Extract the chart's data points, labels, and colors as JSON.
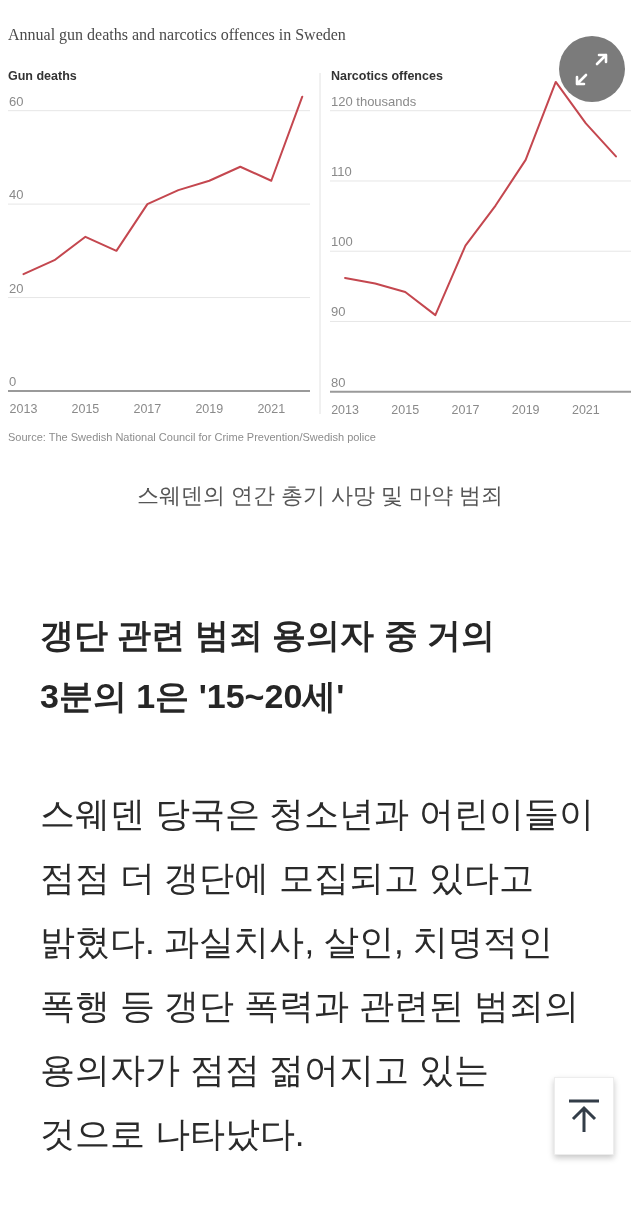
{
  "chart_data": [
    {
      "type": "line",
      "title": "Annual gun deaths and narcotics offences in Sweden",
      "ylabel": "Gun deaths",
      "x": [
        2013,
        2014,
        2015,
        2016,
        2017,
        2018,
        2019,
        2020,
        2021,
        2022
      ],
      "series": [
        {
          "color": "#c4474f",
          "values": [
            25,
            28,
            33,
            30,
            40,
            43,
            45,
            48,
            45,
            63
          ]
        }
      ],
      "xlim": [
        2012.5,
        2022.25
      ],
      "xticks": [
        2013,
        2015,
        2017,
        2019,
        2021
      ],
      "ylim": [
        0,
        68
      ],
      "yticks": [
        0,
        20,
        40,
        60
      ],
      "grid": "y",
      "annotations": [
        "Source: The Swedish National Council for Crime Prevention/Swedish police",
        "스웨덴의 연간 총기 사망 및 마약 범죄"
      ]
    },
    {
      "type": "line",
      "ylabel": "Narcotics offences",
      "x": [
        2013,
        2014,
        2015,
        2016,
        2017,
        2018,
        2019,
        2020,
        2021,
        2022
      ],
      "series": [
        {
          "color": "#c4474f",
          "values": [
            96.2,
            95.4,
            94.2,
            90.9,
            100.8,
            106.5,
            113.0,
            124.1,
            118.2,
            113.5
          ]
        }
      ],
      "xlim": [
        2012.5,
        2022.5
      ],
      "xticks": [
        2013,
        2015,
        2017,
        2019,
        2021
      ],
      "ylim": [
        80,
        125.4
      ],
      "yticks": [
        80,
        90,
        100,
        110,
        {
          "value": 120,
          "label": "120 thousands"
        }
      ],
      "grid": "y"
    },
    {
      "type": "other",
      "title": "갱단 관련 범죄 용의자 중 거의 3분의 1은 '15~20세'",
      "annotations": [
        "스웨덴 당국은 청소년과 어린이들이 점점 더 갱단에 모집되고 있다고 밝혔다. 과실치사, 살인, 치명적인 폭행 등 갱단 폭력과 관련된 범죄의 용의자가 점점 젊어지고 있는 것으로 나타났다."
      ]
    }
  ]
}
